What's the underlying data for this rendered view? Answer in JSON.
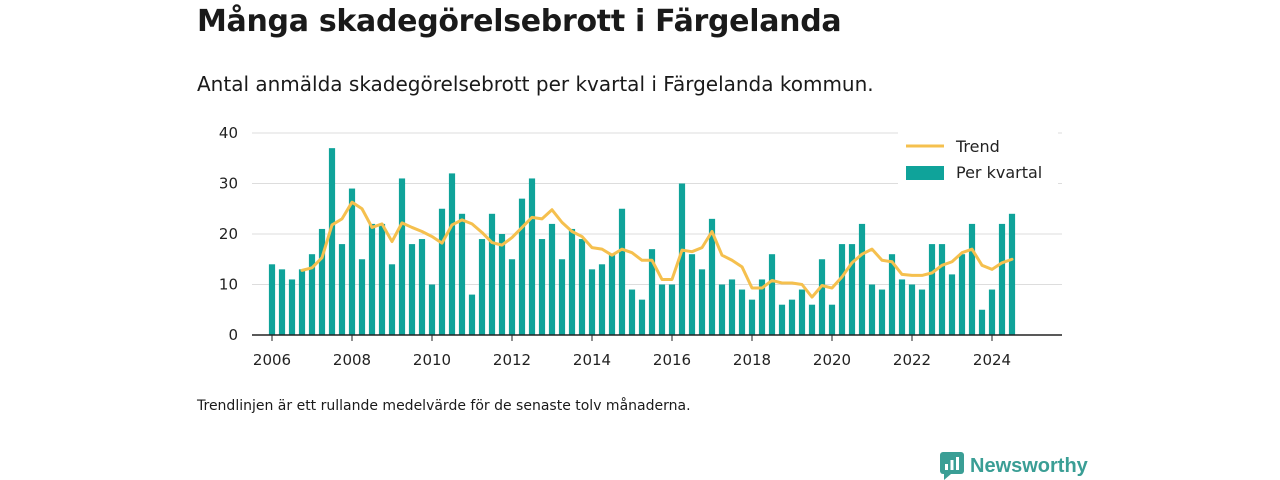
{
  "header": {
    "title": "Många skadegörelsebrott i Färgelanda",
    "subtitle": "Antal anmälda skadegörelsebrott per kvartal i Färgelanda kommun."
  },
  "footer": {
    "note": "Trendlinjen är ett rullande medelvärde för de senaste tolv månaderna.",
    "brand": "Newsworthy"
  },
  "colors": {
    "bars": "#0fa39a",
    "trend": "#f5c04e",
    "grid": "#dddddd",
    "axis": "#222222",
    "brand": "#3a9e95"
  },
  "chart_data": {
    "type": "bar",
    "title": "Många skadegörelsebrott i Färgelanda",
    "subtitle": "Antal anmälda skadegörelsebrott per kvartal i Färgelanda kommun.",
    "x_ticks": [
      "2006",
      "2008",
      "2010",
      "2012",
      "2014",
      "2016",
      "2018",
      "2020",
      "2022",
      "2024"
    ],
    "y_ticks": [
      "0",
      "10",
      "20",
      "30",
      "40"
    ],
    "xlim": [
      2005.5,
      2025.75
    ],
    "ylim": [
      0,
      40
    ],
    "grid": true,
    "legend_position": "top-right",
    "x": [
      2006.0,
      2006.25,
      2006.5,
      2006.75,
      2007.0,
      2007.25,
      2007.5,
      2007.75,
      2008.0,
      2008.25,
      2008.5,
      2008.75,
      2009.0,
      2009.25,
      2009.5,
      2009.75,
      2010.0,
      2010.25,
      2010.5,
      2010.75,
      2011.0,
      2011.25,
      2011.5,
      2011.75,
      2012.0,
      2012.25,
      2012.5,
      2012.75,
      2013.0,
      2013.25,
      2013.5,
      2013.75,
      2014.0,
      2014.25,
      2014.5,
      2014.75,
      2015.0,
      2015.25,
      2015.5,
      2015.75,
      2016.0,
      2016.25,
      2016.5,
      2016.75,
      2017.0,
      2017.25,
      2017.5,
      2017.75,
      2018.0,
      2018.25,
      2018.5,
      2018.75,
      2019.0,
      2019.25,
      2019.5,
      2019.75,
      2020.0,
      2020.25,
      2020.5,
      2020.75,
      2021.0,
      2021.25,
      2021.5,
      2021.75,
      2022.0,
      2022.25,
      2022.5,
      2022.75,
      2023.0,
      2023.25,
      2023.5,
      2023.75,
      2024.0,
      2024.25,
      2024.5
    ],
    "series": [
      {
        "name": "Per kvartal",
        "type": "bar",
        "values": [
          14,
          13,
          11,
          13,
          16,
          21,
          37,
          18,
          29,
          15,
          22,
          22,
          14,
          31,
          18,
          19,
          10,
          25,
          32,
          24,
          8,
          19,
          24,
          20,
          15,
          27,
          31,
          19,
          22,
          15,
          21,
          19,
          13,
          14,
          16,
          25,
          9,
          7,
          17,
          10,
          10,
          30,
          16,
          13,
          23,
          10,
          11,
          9,
          7,
          11,
          16,
          6,
          7,
          9,
          6,
          15,
          6,
          18,
          18,
          22,
          10,
          9,
          16,
          11,
          10,
          9,
          18,
          18,
          12,
          16,
          22,
          5,
          9,
          22,
          24
        ]
      },
      {
        "name": "Trend",
        "type": "line",
        "x": [
          2006.75,
          2007.0,
          2007.25,
          2007.5,
          2007.75,
          2008.0,
          2008.25,
          2008.5,
          2008.75,
          2009.0,
          2009.25,
          2009.5,
          2009.75,
          2010.0,
          2010.25,
          2010.5,
          2010.75,
          2011.0,
          2011.25,
          2011.5,
          2011.75,
          2012.0,
          2012.25,
          2012.5,
          2012.75,
          2013.0,
          2013.25,
          2013.5,
          2013.75,
          2014.0,
          2014.25,
          2014.5,
          2014.75,
          2015.0,
          2015.25,
          2015.5,
          2015.75,
          2016.0,
          2016.25,
          2016.5,
          2016.75,
          2017.0,
          2017.25,
          2017.5,
          2017.75,
          2018.0,
          2018.25,
          2018.5,
          2018.75,
          2019.0,
          2019.25,
          2019.5,
          2019.75,
          2020.0,
          2020.25,
          2020.5,
          2020.75,
          2021.0,
          2021.25,
          2021.5,
          2021.75,
          2022.0,
          2022.25,
          2022.5,
          2022.75,
          2023.0,
          2023.25,
          2023.5,
          2023.75,
          2024.0,
          2024.25,
          2024.5
        ],
        "values": [
          12.8,
          13.3,
          15.3,
          21.8,
          23.0,
          26.3,
          25.0,
          21.3,
          22.0,
          18.5,
          22.2,
          21.3,
          20.5,
          19.5,
          18.2,
          21.8,
          22.8,
          22.0,
          20.3,
          18.3,
          17.8,
          19.3,
          21.3,
          23.3,
          23.0,
          24.8,
          22.3,
          20.5,
          19.5,
          17.3,
          17.0,
          15.8,
          17.0,
          16.3,
          14.8,
          14.8,
          11.0,
          11.0,
          16.8,
          16.5,
          17.3,
          20.5,
          15.8,
          14.8,
          13.5,
          9.3,
          9.3,
          10.8,
          10.3,
          10.3,
          10.0,
          7.5,
          9.8,
          9.3,
          11.5,
          14.3,
          16.0,
          17.0,
          14.8,
          14.5,
          12.0,
          11.8,
          11.8,
          12.3,
          13.8,
          14.5,
          16.3,
          17.0,
          13.8,
          13.0,
          14.3,
          15.0
        ]
      }
    ]
  }
}
